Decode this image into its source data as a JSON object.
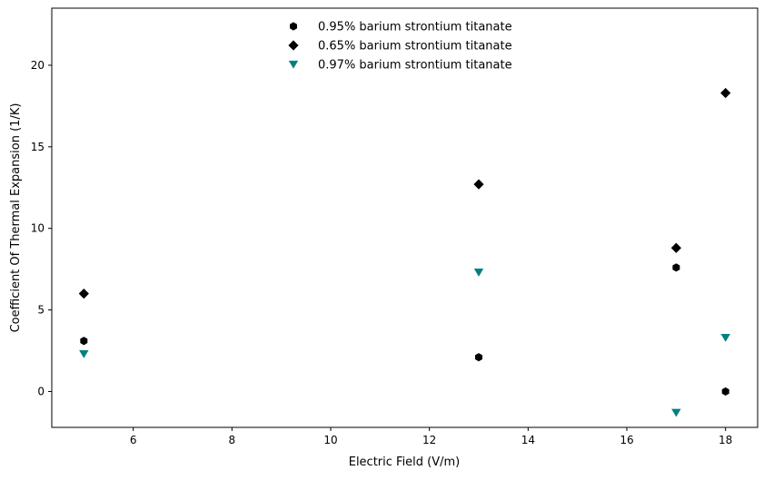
{
  "chart_data": {
    "type": "scatter",
    "title": "",
    "xlabel": "Electric Field (V/m)",
    "ylabel": "Coefficient Of Thermal Expansion (1/K)",
    "xlim": [
      4.35,
      18.65
    ],
    "ylim": [
      -2.2,
      23.5
    ],
    "xticks": [
      6,
      8,
      10,
      12,
      14,
      16,
      18
    ],
    "yticks": [
      0,
      5,
      10,
      15,
      20
    ],
    "grid": false,
    "legend_position": "upper-center",
    "series": [
      {
        "name": "0.95% barium strontium titanate",
        "marker": "hexagon",
        "color": "#000000",
        "x": [
          5,
          13,
          17,
          18
        ],
        "y": [
          3.1,
          2.1,
          7.6,
          0.0
        ]
      },
      {
        "name": "0.65% barium strontium titanate",
        "marker": "diamond",
        "color": "#000000",
        "x": [
          5,
          13,
          17,
          18
        ],
        "y": [
          6.0,
          12.7,
          8.8,
          18.3
        ]
      },
      {
        "name": "0.97% barium strontium titanate",
        "marker": "triangle-down",
        "color": "#008080",
        "x": [
          5,
          13,
          17,
          18
        ],
        "y": [
          2.3,
          7.3,
          -1.3,
          3.3
        ]
      }
    ]
  }
}
